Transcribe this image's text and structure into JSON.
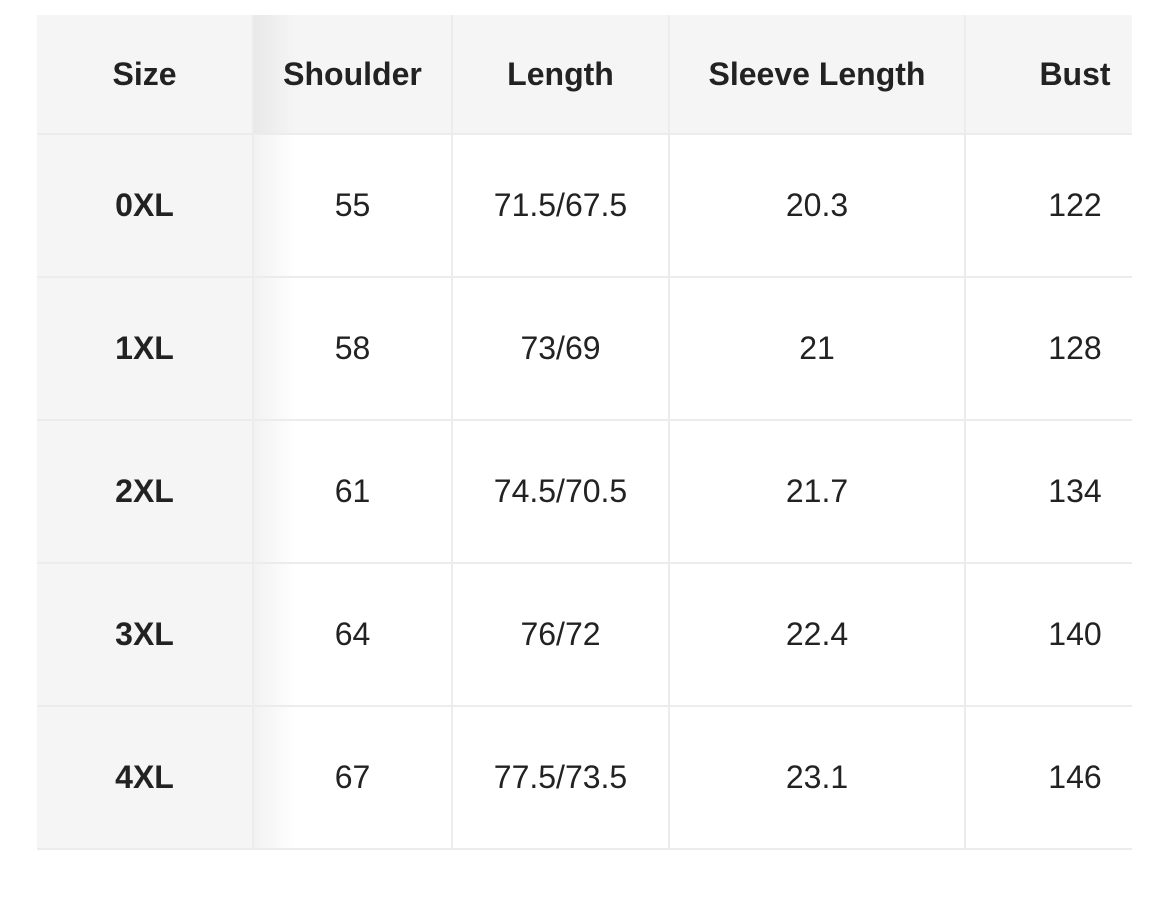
{
  "table": {
    "headers": [
      "Size",
      "Shoulder",
      "Length",
      "Sleeve Length",
      "Bust"
    ],
    "rows": [
      [
        "0XL",
        "55",
        "71.5/67.5",
        "20.3",
        "122"
      ],
      [
        "1XL",
        "58",
        "73/69",
        "21",
        "128"
      ],
      [
        "2XL",
        "61",
        "74.5/70.5",
        "21.7",
        "134"
      ],
      [
        "3XL",
        "64",
        "76/72",
        "22.4",
        "140"
      ],
      [
        "4XL",
        "67",
        "77.5/73.5",
        "23.1",
        "146"
      ]
    ]
  }
}
